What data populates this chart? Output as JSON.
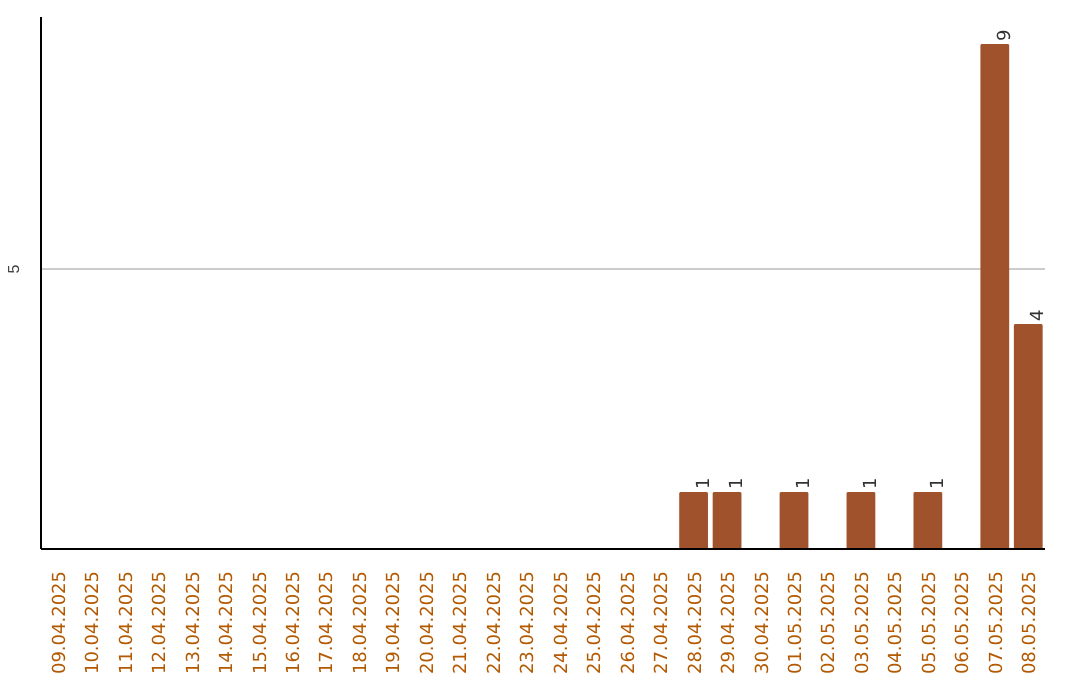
{
  "chart_data": {
    "type": "bar",
    "categories": [
      "09.04.2025",
      "10.04.2025",
      "11.04.2025",
      "12.04.2025",
      "13.04.2025",
      "14.04.2025",
      "15.04.2025",
      "16.04.2025",
      "17.04.2025",
      "18.04.2025",
      "19.04.2025",
      "20.04.2025",
      "21.04.2025",
      "22.04.2025",
      "23.04.2025",
      "24.04.2025",
      "25.04.2025",
      "26.04.2025",
      "27.04.2025",
      "28.04.2025",
      "29.04.2025",
      "30.04.2025",
      "01.05.2025",
      "02.05.2025",
      "03.05.2025",
      "04.05.2025",
      "05.05.2025",
      "06.05.2025",
      "07.05.2025",
      "08.05.2025"
    ],
    "values": [
      null,
      null,
      null,
      null,
      null,
      null,
      null,
      null,
      null,
      null,
      null,
      null,
      null,
      null,
      null,
      null,
      null,
      null,
      null,
      1,
      1,
      null,
      1,
      null,
      1,
      null,
      1,
      null,
      9,
      4
    ],
    "data_labels": true,
    "color": "#a0522d",
    "ylim": [
      0,
      9.5
    ],
    "yticks": [
      5
    ],
    "grid": "y"
  }
}
